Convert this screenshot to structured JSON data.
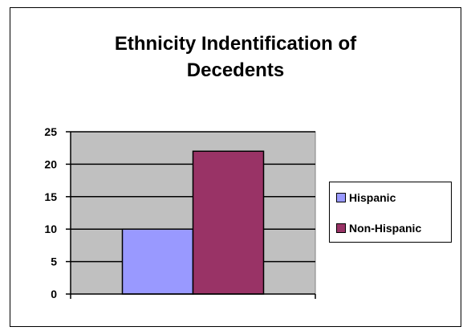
{
  "chart_data": {
    "type": "bar",
    "title": "Ethnicity Indentification of\nDecedents",
    "xlabel": "",
    "ylabel": "",
    "categories": [
      ""
    ],
    "series": [
      {
        "name": "Hispanic",
        "values": [
          10
        ],
        "color": "#9999ff"
      },
      {
        "name": "Non-Hispanic",
        "values": [
          22
        ],
        "color": "#993366"
      }
    ],
    "ylim": [
      0,
      25
    ],
    "yticks": [
      "0",
      "5",
      "10",
      "15",
      "20",
      "25"
    ],
    "grid": true,
    "plot_background": "#c0c0c0",
    "legend_position": "right"
  }
}
